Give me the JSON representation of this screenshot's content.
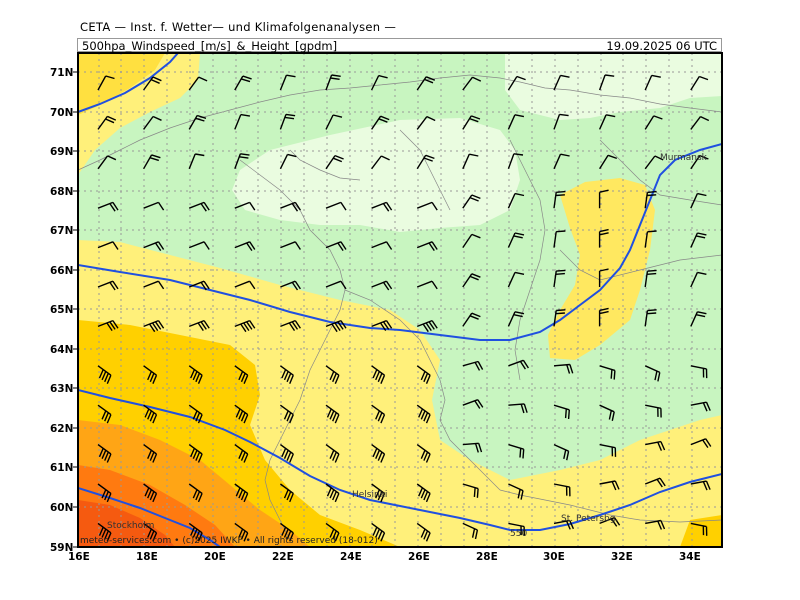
{
  "header": {
    "line1": "CETA — Inst. f. Wetter— und Klimafolgenanalysen —",
    "line2": "500hpa_Windspeed_[m/s]_&_Height_[gpdm]",
    "datetime": "19.09.2025 06 UTC"
  },
  "axes": {
    "lat_labels": [
      "71N",
      "70N",
      "69N",
      "68N",
      "67N",
      "66N",
      "65N",
      "64N",
      "63N",
      "62N",
      "61N",
      "60N",
      "59N"
    ],
    "lon_labels": [
      "16E",
      "18E",
      "20E",
      "22E",
      "24E",
      "26E",
      "28E",
      "30E",
      "32E",
      "34E"
    ]
  },
  "places": {
    "murmansk": "Murmansk",
    "helsinki": "Helsinki",
    "st_petersburg": "St. Petersbg.",
    "stockholm": "Stockholm"
  },
  "contour_label": "550",
  "copyright": "meteo-services.com • (c)2025 IWKF • All rights reserved (18-012)",
  "colors": {
    "very_light_green": "#eafce0",
    "light_green": "#c8f5c0",
    "light_yellow": "#fff07a",
    "yellow": "#ffe040",
    "gold": "#ffd000",
    "orange": "#ffa515",
    "dark_orange": "#ff7a10",
    "red_orange": "#f55a10",
    "contour": "#2050e0"
  }
}
